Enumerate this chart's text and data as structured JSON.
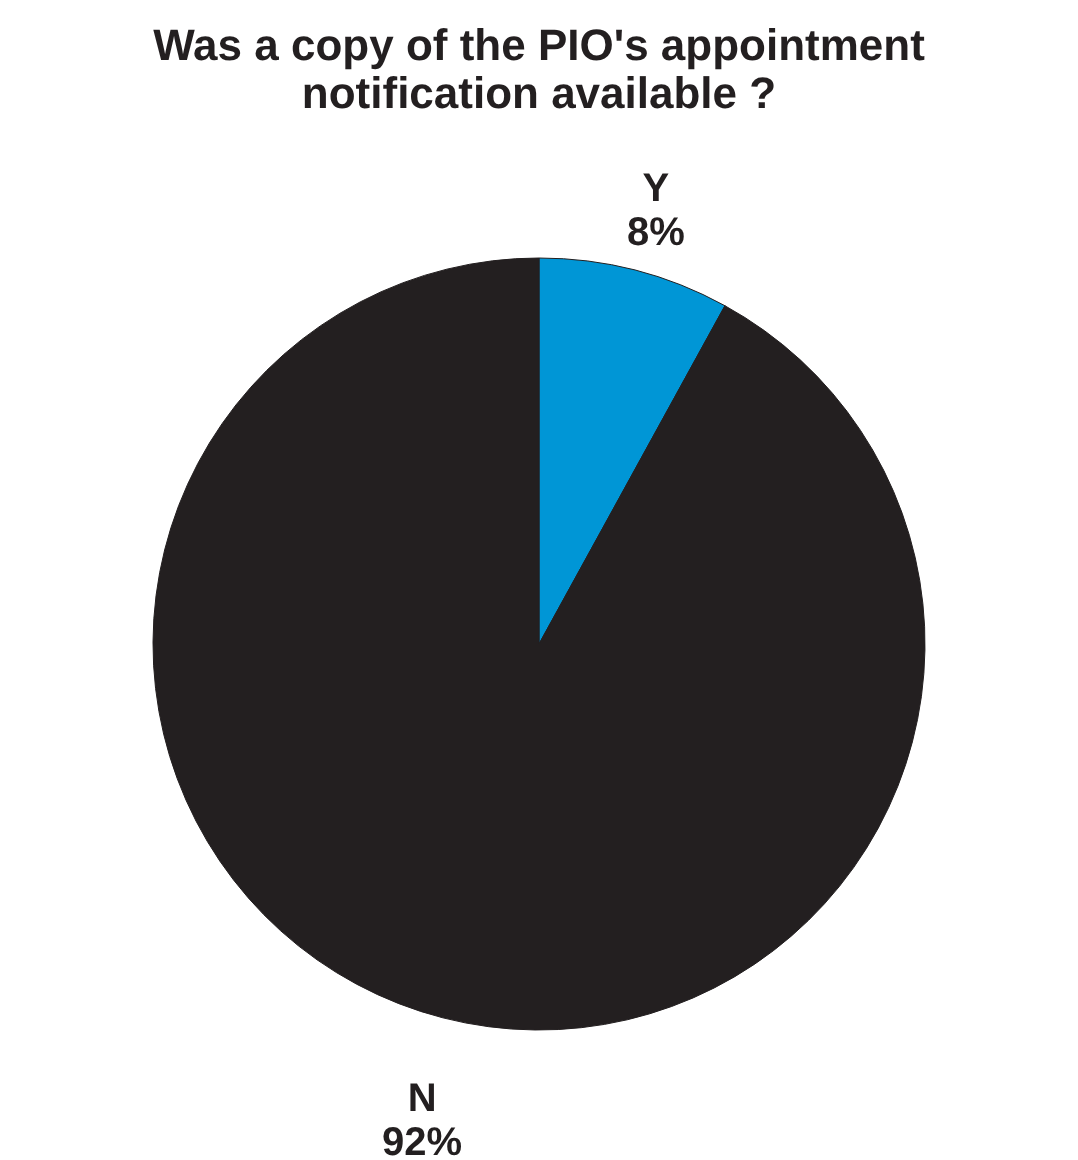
{
  "chart_data": {
    "type": "pie",
    "title": [
      "Was a copy of the PIO's appointment",
      "notification available ?"
    ],
    "categories": [
      "Y",
      "N"
    ],
    "values": [
      8,
      92
    ],
    "value_labels": [
      "8%",
      "92%"
    ],
    "colors": [
      "#0096d6",
      "#231f20"
    ],
    "legend": false
  }
}
